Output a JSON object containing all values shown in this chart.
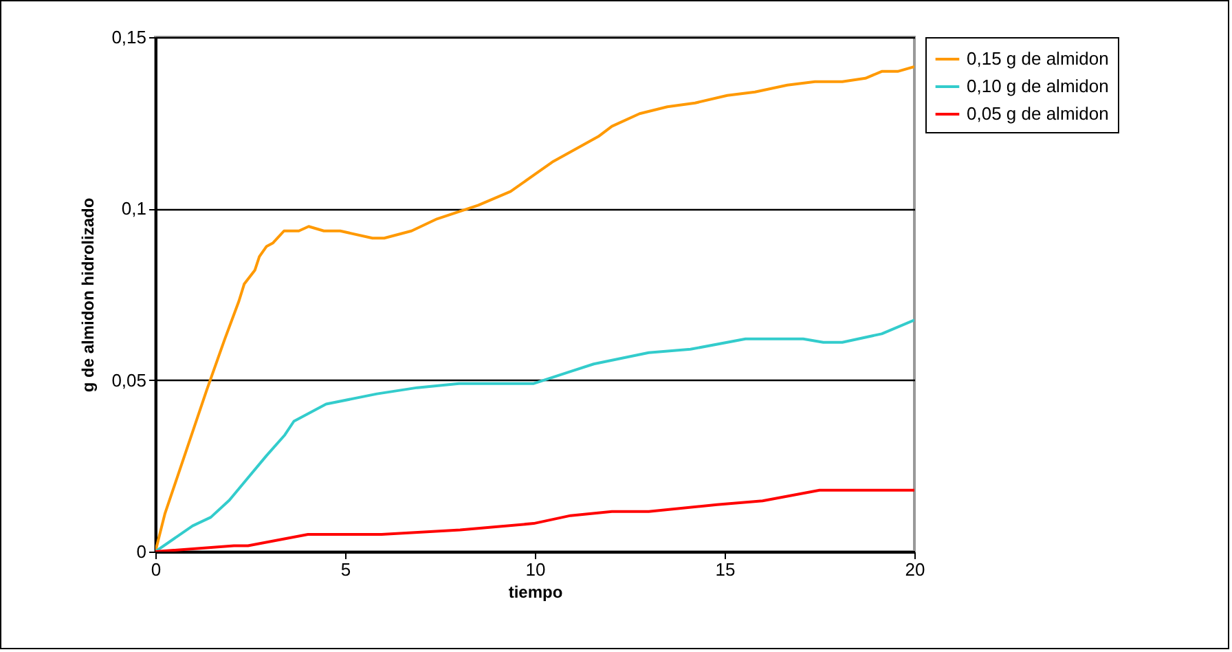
{
  "chart_data": {
    "type": "line",
    "xlabel": "tiempo",
    "ylabel": "g de almidon hidrolizado",
    "xlim": [
      0,
      20
    ],
    "ylim": [
      0,
      0.15
    ],
    "xticks": [
      0,
      5,
      10,
      15,
      20
    ],
    "yticks": [
      0,
      {
        "value": 0.05,
        "label": "0,05"
      },
      {
        "value": 0.1,
        "label": "0,1"
      },
      {
        "value": 0.15,
        "label": "0,15"
      }
    ],
    "grid": "y",
    "legend": "right",
    "marker": "none",
    "line_style": "solid",
    "series": [
      {
        "name": "0,15 g de almidon",
        "color": "#ff9900",
        "x": [
          0,
          0.25,
          1.35,
          1.83,
          2.2,
          2.34,
          2.62,
          2.74,
          2.93,
          3.1,
          3.39,
          3.78,
          4.04,
          4.44,
          4.87,
          5.72,
          6.03,
          6.75,
          7.42,
          8.51,
          9.36,
          10.46,
          11.18,
          11.67,
          12.03,
          12.76,
          13.49,
          14.22,
          15.07,
          15.8,
          16.65,
          17.38,
          18.1,
          18.71,
          19.14,
          19.56,
          20
        ],
        "values": [
          0,
          0.011,
          0.047,
          0.062,
          0.073,
          0.078,
          0.082,
          0.086,
          0.089,
          0.09,
          0.0935,
          0.0935,
          0.0948,
          0.0935,
          0.0935,
          0.0914,
          0.0914,
          0.0935,
          0.097,
          0.101,
          0.105,
          0.1136,
          0.118,
          0.121,
          0.124,
          0.1277,
          0.1297,
          0.1308,
          0.133,
          0.134,
          0.136,
          0.137,
          0.137,
          0.138,
          0.14,
          0.14,
          0.1414
        ]
      },
      {
        "name": "0,10 g de almidon",
        "color": "#33cccc",
        "x": [
          0,
          0.98,
          1.46,
          1.95,
          2.44,
          2.93,
          3.41,
          3.65,
          4.5,
          5.84,
          6.9,
          8.0,
          9.97,
          10.94,
          11.55,
          13.0,
          14.1,
          15.55,
          17.07,
          17.6,
          18.1,
          19.14,
          20
        ],
        "values": [
          0,
          0.0075,
          0.01,
          0.015,
          0.0215,
          0.028,
          0.034,
          0.038,
          0.043,
          0.046,
          0.0478,
          0.049,
          0.049,
          0.0525,
          0.0547,
          0.058,
          0.059,
          0.062,
          0.062,
          0.061,
          0.061,
          0.0635,
          0.0675
        ]
      },
      {
        "name": "0,05 g de almidon",
        "color": "#ff0000",
        "x": [
          0,
          2.07,
          2.44,
          4.02,
          5.96,
          8.03,
          9.97,
          10.94,
          12.03,
          13.0,
          14.8,
          16.0,
          17.5,
          20
        ],
        "values": [
          0,
          0.0017,
          0.0017,
          0.005,
          0.005,
          0.0063,
          0.0082,
          0.0105,
          0.0117,
          0.0117,
          0.0137,
          0.0148,
          0.0179,
          0.0179
        ]
      }
    ]
  }
}
